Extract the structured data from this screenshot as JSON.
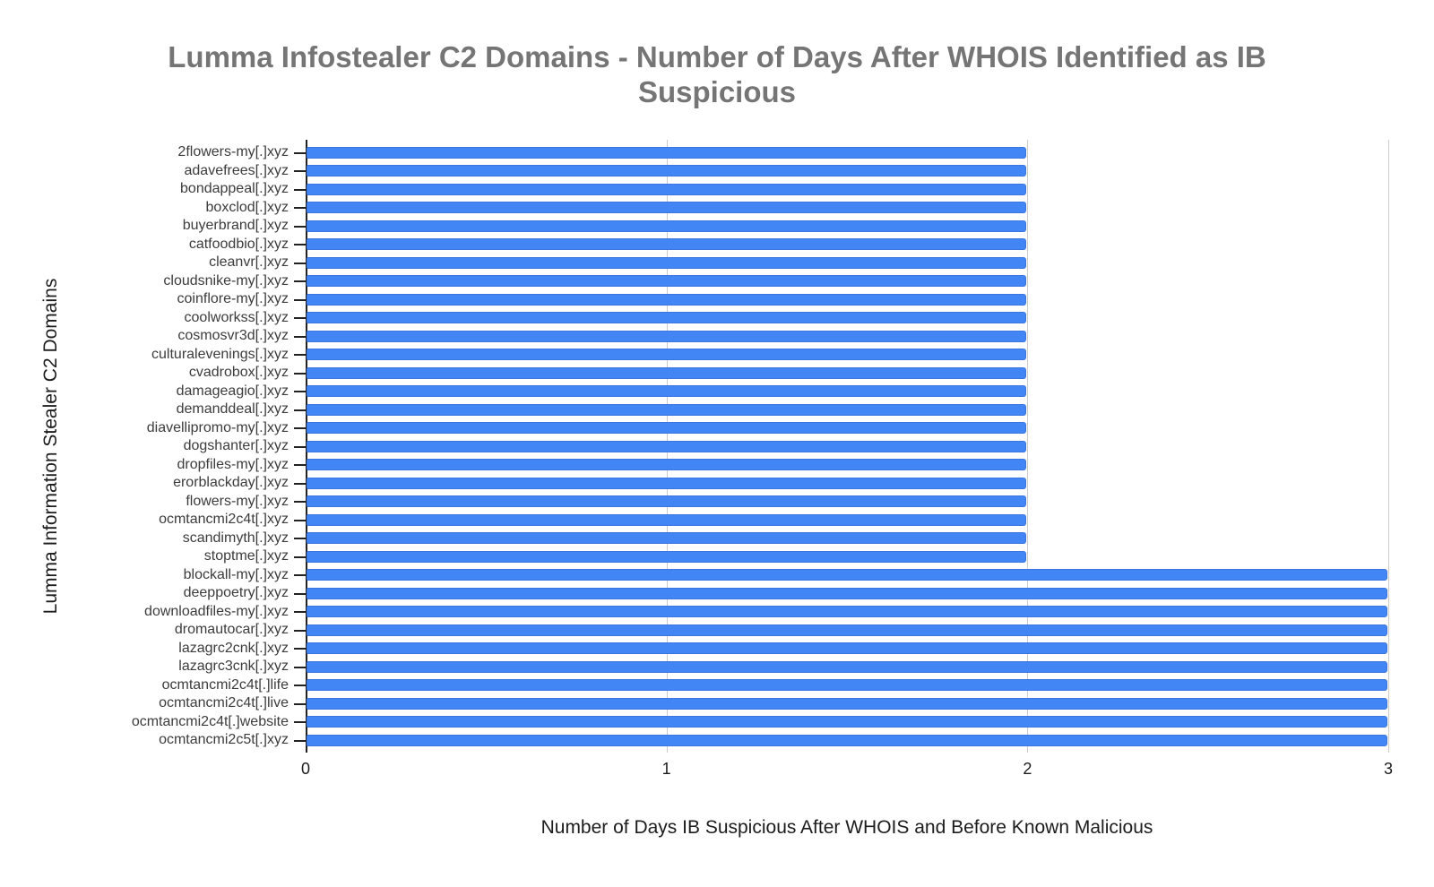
{
  "title": {
    "line1": "Lumma Infostealer C2 Domains - Number of Days After WHOIS Identified as IB",
    "line2": "Suspicious"
  },
  "colors": {
    "bar": "#4285f4",
    "bar_border": "#3b76e0",
    "grid": "#cccccc",
    "axis": "#222222",
    "title_text": "#757575",
    "category_text": "#3c3c3c"
  },
  "chart_data": {
    "type": "bar",
    "orientation": "horizontal",
    "title": "Lumma Infostealer C2 Domains - Number of Days After WHOIS Identified as IB Suspicious",
    "xlabel": "Number of Days IB Suspicious After WHOIS and Before Known Malicious",
    "ylabel": "Lumma Information Stealer C2 Domains",
    "xlim": [
      0,
      3
    ],
    "xticks": [
      0,
      1,
      2,
      3
    ],
    "grid": true,
    "legend": "none",
    "categories": [
      "2flowers-my[.]xyz",
      "adavefrees[.]xyz",
      "bondappeal[.]xyz",
      "boxclod[.]xyz",
      "buyerbrand[.]xyz",
      "catfoodbio[.]xyz",
      "cleanvr[.]xyz",
      "cloudsnike-my[.]xyz",
      "coinflore-my[.]xyz",
      "coolworkss[.]xyz",
      "cosmosvr3d[.]xyz",
      "culturalevenings[.]xyz",
      "cvadrobox[.]xyz",
      "damageagio[.]xyz",
      "demanddeal[.]xyz",
      "diavellipromo-my[.]xyz",
      "dogshanter[.]xyz",
      "dropfiles-my[.]xyz",
      "erorblackday[.]xyz",
      "flowers-my[.]xyz",
      "ocmtancmi2c4t[.]xyz",
      "scandimyth[.]xyz",
      "stoptme[.]xyz",
      "blockall-my[.]xyz",
      "deeppoetry[.]xyz",
      "downloadfiles-my[.]xyz",
      "dromautocar[.]xyz",
      "lazagrc2cnk[.]xyz",
      "lazagrc3cnk[.]xyz",
      "ocmtancmi2c4t[.]life",
      "ocmtancmi2c4t[.]live",
      "ocmtancmi2c4t[.]website",
      "ocmtancmi2c5t[.]xyz"
    ],
    "values": [
      2,
      2,
      2,
      2,
      2,
      2,
      2,
      2,
      2,
      2,
      2,
      2,
      2,
      2,
      2,
      2,
      2,
      2,
      2,
      2,
      2,
      2,
      2,
      3,
      3,
      3,
      3,
      3,
      3,
      3,
      3,
      3,
      3
    ]
  }
}
